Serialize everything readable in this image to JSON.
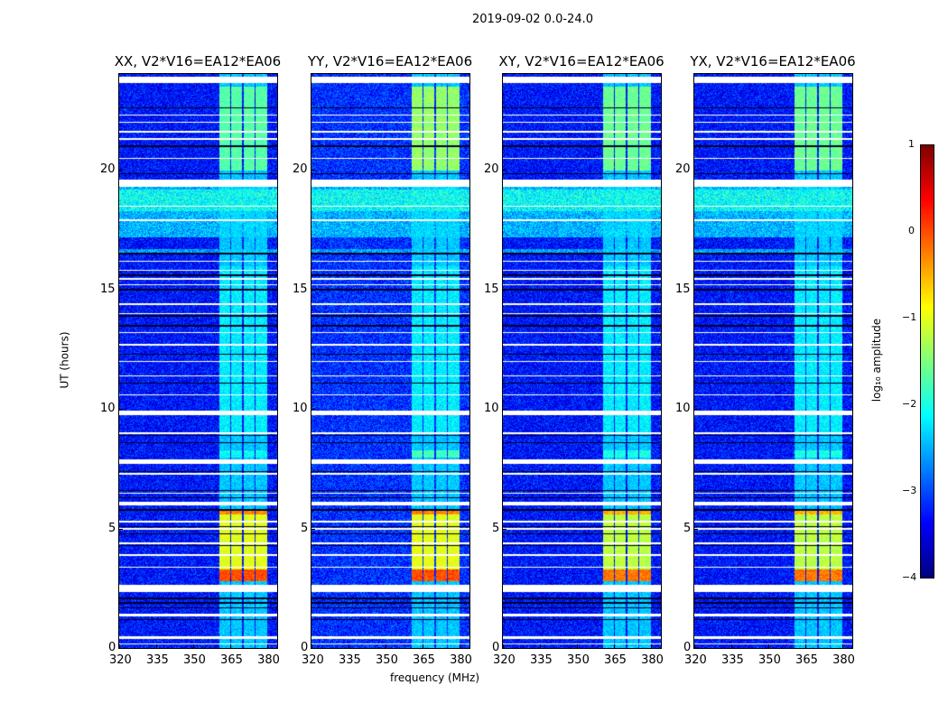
{
  "suptitle": "2019-09-02 0.0-24.0",
  "chart_data": {
    "type": "heatmap",
    "title": "2019-09-02 0.0-24.0",
    "xlabel": "frequency (MHz)",
    "ylabel": "UT (hours)",
    "xlim": [
      320,
      384
    ],
    "ylim": [
      0,
      24
    ],
    "xticks": [
      "320",
      "335",
      "350",
      "365",
      "380"
    ],
    "yticks": [
      "0",
      "5",
      "10",
      "15",
      "20"
    ],
    "panels": [
      {
        "title": "XX, V2*V16=EA12*EA06"
      },
      {
        "title": "YY, V2*V16=EA12*EA06"
      },
      {
        "title": "XY, V2*V16=EA12*EA06"
      },
      {
        "title": "YX, V2*V16=EA12*EA06"
      }
    ],
    "colorbar": {
      "label": "log₁₀ amplitude",
      "range": [
        -4,
        1
      ],
      "ticks": [
        "1",
        "0",
        "−1",
        "−2",
        "−3",
        "−4"
      ],
      "colormap": "jet"
    },
    "background_level": -3.3,
    "rfi_subbands_mhz": [
      [
        360.5,
        365
      ],
      [
        365.5,
        370
      ],
      [
        370.5,
        375
      ],
      [
        375.5,
        380
      ]
    ],
    "flagged_hours": [
      [
        23.65,
        23.9
      ],
      [
        19.3,
        19.6
      ],
      [
        15.4,
        15.5
      ],
      [
        9.75,
        9.95
      ],
      [
        7.7,
        7.9
      ],
      [
        6.0,
        6.15
      ],
      [
        5.25,
        5.35
      ],
      [
        2.35,
        2.65
      ],
      [
        1.35,
        1.45
      ],
      [
        0.4,
        0.5
      ]
    ],
    "bright_broadband_hours": [
      17.2,
      19.3
    ],
    "strong_rfi_hours": [
      [
        2.8,
        3.3,
        0.0
      ],
      [
        3.3,
        5.6,
        -1.0
      ],
      [
        5.6,
        5.75,
        -0.3
      ],
      [
        20.0,
        23.5,
        -1.4
      ],
      [
        8.0,
        8.3,
        -1.8
      ]
    ]
  }
}
